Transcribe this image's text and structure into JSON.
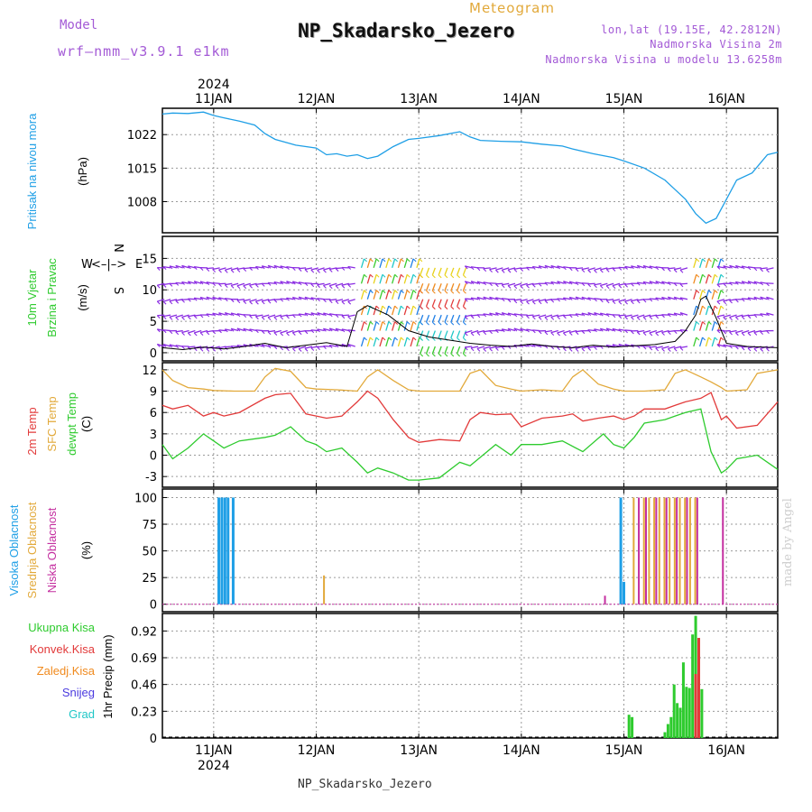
{
  "header": {
    "model_label": "Model",
    "model_name": "wrf–nmm_v3.9.1 e1km",
    "meteogram_label": "Meteogram",
    "title": "NP_Skadarsko_Jezero",
    "lonlat": "lon,lat (19.15E, 42.2812N)",
    "altitude": "Nadmorska Visina 2m",
    "model_altitude": "Nadmorska Visina u modelu 13.6258m"
  },
  "footer": "NP_Skadarsko_Jezero",
  "credit": "made by Angel",
  "colors": {
    "pressure": "#1f9fe6",
    "temp2m": "#e23a3a",
    "sfc_temp": "#e2a93a",
    "dewpoint": "#2ecb2e",
    "wind_barb": "#8a2be2",
    "precip_total": "#2ecb2e",
    "precip_conv": "#e23a3a",
    "cloud_high": "#1f9fe6",
    "cloud_mid": "#e2a93a",
    "cloud_low": "#c42fa0"
  },
  "chart_data": [
    {
      "type": "line",
      "panel": "pressure",
      "ylabel": "Pritisak na nivou mora",
      "unit": "(hPa)",
      "yticks": [
        1008,
        1015,
        1022
      ],
      "ylim": [
        1001.5,
        1027.5
      ],
      "x_days": [
        10.5,
        10.6,
        10.75,
        10.9,
        11.0,
        11.1,
        11.25,
        11.4,
        11.5,
        11.6,
        11.8,
        12.0,
        12.1,
        12.2,
        12.3,
        12.4,
        12.5,
        12.6,
        12.75,
        12.9,
        13.0,
        13.2,
        13.4,
        13.5,
        13.6,
        13.8,
        14.0,
        14.2,
        14.4,
        14.5,
        14.7,
        14.9,
        15.0,
        15.2,
        15.4,
        15.5,
        15.6,
        15.7,
        15.8,
        15.9,
        16.0,
        16.1,
        16.25,
        16.4,
        16.5
      ],
      "values": [
        1026.3,
        1026.5,
        1026.4,
        1026.7,
        1026.0,
        1025.5,
        1024.8,
        1024.0,
        1022.2,
        1021.0,
        1019.8,
        1019.2,
        1017.8,
        1018.0,
        1017.5,
        1017.8,
        1017.0,
        1017.5,
        1019.5,
        1021.0,
        1021.2,
        1021.8,
        1022.6,
        1021.5,
        1020.8,
        1020.6,
        1020.5,
        1020.0,
        1019.6,
        1019.0,
        1018.0,
        1017.2,
        1016.5,
        1015.0,
        1012.5,
        1010.5,
        1008.5,
        1005.5,
        1003.5,
        1004.5,
        1008.5,
        1012.5,
        1014.0,
        1017.8,
        1018.3
      ]
    },
    {
      "type": "line",
      "panel": "wind",
      "ylabel": "10m Vjetar",
      "ylabel2": "Brzina i Pravac",
      "unit": "(m/s)",
      "yticks": [
        0,
        5,
        10,
        15
      ],
      "ylim": [
        -1.3,
        18.5
      ],
      "compass": {
        "n": "N",
        "s": "S",
        "e": "E",
        "w": "W",
        "arrows": "<–|–>"
      },
      "series": [
        {
          "name": "speed",
          "x_days": [
            10.5,
            10.7,
            10.9,
            11.1,
            11.3,
            11.5,
            11.7,
            11.9,
            12.1,
            12.3,
            12.4,
            12.5,
            12.7,
            12.9,
            13.1,
            13.3,
            13.5,
            13.7,
            13.9,
            14.1,
            14.3,
            14.5,
            14.7,
            14.9,
            15.1,
            15.3,
            15.5,
            15.6,
            15.7,
            15.75,
            15.8,
            15.9,
            16.0,
            16.2,
            16.5
          ],
          "values": [
            0.8,
            0.5,
            0.9,
            0.6,
            1.0,
            1.5,
            0.8,
            1.2,
            1.6,
            1.0,
            6.5,
            7.5,
            6.0,
            3.5,
            2.5,
            2.0,
            1.5,
            1.2,
            1.0,
            1.4,
            1.0,
            0.8,
            1.2,
            0.9,
            1.1,
            1.3,
            1.8,
            3.5,
            6.0,
            8.5,
            9.0,
            5.5,
            1.5,
            1.0,
            0.8
          ]
        }
      ]
    },
    {
      "type": "line",
      "panel": "temperature",
      "ylabel": "2m Temp",
      "ylabel2": "SFC Temp",
      "ylabel3": "dewpt Temp",
      "unit": "(C)",
      "yticks": [
        -3,
        0,
        3,
        6,
        9,
        12
      ],
      "ylim": [
        -4.5,
        13
      ],
      "series": [
        {
          "name": "2m Temp",
          "x_days": [
            10.5,
            10.6,
            10.75,
            10.9,
            11.0,
            11.1,
            11.25,
            11.5,
            11.6,
            11.75,
            11.9,
            12.0,
            12.1,
            12.25,
            12.4,
            12.5,
            12.6,
            12.75,
            12.9,
            13.0,
            13.2,
            13.4,
            13.5,
            13.6,
            13.75,
            13.9,
            14.0,
            14.2,
            14.4,
            14.5,
            14.6,
            14.75,
            14.9,
            15.0,
            15.1,
            15.2,
            15.4,
            15.5,
            15.6,
            15.75,
            15.85,
            15.95,
            16.0,
            16.1,
            16.3,
            16.5
          ],
          "values": [
            7.0,
            6.5,
            7.0,
            5.5,
            6.0,
            5.5,
            6.0,
            8.0,
            8.5,
            8.7,
            5.8,
            5.5,
            5.2,
            5.5,
            7.5,
            9.0,
            8.0,
            5.0,
            2.5,
            1.8,
            2.2,
            2.0,
            5.0,
            6.0,
            5.7,
            5.8,
            4.0,
            5.2,
            5.5,
            5.8,
            4.8,
            5.2,
            5.5,
            5.0,
            5.5,
            6.5,
            6.5,
            7.0,
            7.5,
            8.0,
            8.8,
            5.0,
            5.5,
            3.8,
            4.2,
            7.5
          ]
        },
        {
          "name": "SFC Temp",
          "x_days": [
            10.5,
            10.6,
            10.75,
            10.9,
            11.0,
            11.2,
            11.4,
            11.5,
            11.6,
            11.75,
            11.9,
            12.0,
            12.2,
            12.4,
            12.5,
            12.6,
            12.75,
            12.9,
            13.0,
            13.2,
            13.4,
            13.5,
            13.6,
            13.75,
            13.9,
            14.0,
            14.2,
            14.4,
            14.5,
            14.6,
            14.75,
            14.9,
            15.0,
            15.2,
            15.4,
            15.5,
            15.6,
            15.75,
            15.85,
            15.95,
            16.0,
            16.2,
            16.3,
            16.5
          ],
          "values": [
            12.0,
            10.5,
            9.5,
            9.3,
            9.1,
            9.0,
            9.0,
            11.0,
            12.2,
            11.8,
            9.5,
            9.3,
            9.2,
            9.0,
            11.0,
            12.0,
            10.5,
            9.2,
            9.0,
            9.0,
            9.0,
            11.5,
            12.0,
            9.8,
            9.3,
            9.0,
            9.2,
            9.0,
            11.0,
            12.0,
            10.0,
            9.3,
            9.0,
            9.0,
            9.2,
            11.5,
            12.0,
            11.0,
            10.3,
            9.5,
            9.0,
            9.2,
            11.5,
            12.0
          ]
        },
        {
          "name": "dewpt Temp",
          "x_days": [
            10.5,
            10.6,
            10.75,
            10.9,
            11.0,
            11.1,
            11.25,
            11.5,
            11.6,
            11.75,
            11.9,
            12.0,
            12.1,
            12.25,
            12.4,
            12.5,
            12.6,
            12.75,
            12.9,
            13.0,
            13.2,
            13.4,
            13.5,
            13.75,
            13.9,
            14.0,
            14.2,
            14.4,
            14.6,
            14.8,
            14.9,
            15.0,
            15.1,
            15.2,
            15.4,
            15.5,
            15.6,
            15.75,
            15.85,
            15.95,
            16.0,
            16.1,
            16.3,
            16.5
          ],
          "values": [
            1.5,
            -0.5,
            1.0,
            3.0,
            2.0,
            1.0,
            2.0,
            2.5,
            2.8,
            4.0,
            2.0,
            1.5,
            0.5,
            1.0,
            -1.0,
            -2.5,
            -1.8,
            -2.5,
            -3.5,
            -3.5,
            -3.2,
            -1.0,
            -1.5,
            1.5,
            0.0,
            1.5,
            1.5,
            2.0,
            0.5,
            3.0,
            1.5,
            1.0,
            2.5,
            4.5,
            5.0,
            5.5,
            6.0,
            6.5,
            0.5,
            -2.5,
            -2.0,
            -0.5,
            0.0,
            -2.0
          ]
        }
      ]
    },
    {
      "type": "bar",
      "panel": "clouds",
      "ylabel": "Visoka Oblacnost",
      "ylabel2": "Srednja Oblacnost",
      "ylabel3": "Niska Oblacnost",
      "unit": "(%)",
      "yticks": [
        0,
        25,
        50,
        75,
        100
      ],
      "ylim": [
        -7,
        108
      ],
      "series": [
        {
          "name": "Visoka Oblacnost",
          "x_days": [
            11.05,
            11.08,
            11.11,
            11.14,
            11.19,
            14.97,
            15.0
          ],
          "values": [
            100,
            100,
            100,
            100,
            100,
            100,
            21
          ]
        },
        {
          "name": "Srednja Oblacnost",
          "x_days": [
            12.08,
            15.1,
            15.2,
            15.25,
            15.3,
            15.35,
            15.4,
            15.45,
            15.5,
            15.55,
            15.6,
            15.65,
            15.7
          ],
          "values": [
            27,
            100,
            100,
            100,
            100,
            100,
            100,
            100,
            100,
            100,
            100,
            100,
            100
          ]
        },
        {
          "name": "Niska Oblacnost",
          "x_days": [
            14.82,
            15.15,
            15.22,
            15.32,
            15.42,
            15.52,
            15.62,
            15.72,
            15.97
          ],
          "values": [
            8,
            100,
            100,
            100,
            100,
            100,
            100,
            100,
            100
          ]
        }
      ]
    },
    {
      "type": "bar",
      "panel": "precip",
      "ylabel": "1hr Precip (mm)",
      "yticks": [
        0,
        0.23,
        0.46,
        0.69,
        0.92
      ],
      "ylim": [
        0,
        1.07
      ],
      "legend": [
        "Ukupna Kisa",
        "Konvek.Kisa",
        "Zaledj.Kisa",
        "Snijeg",
        "Grad"
      ],
      "series": [
        {
          "name": "Ukupna Kisa",
          "x_days": [
            15.05,
            15.08,
            15.4,
            15.43,
            15.46,
            15.49,
            15.52,
            15.55,
            15.58,
            15.61,
            15.64,
            15.67,
            15.7,
            15.73,
            15.76
          ],
          "values": [
            0.2,
            0.18,
            0.05,
            0.12,
            0.18,
            0.46,
            0.3,
            0.26,
            0.65,
            0.44,
            0.43,
            0.89,
            1.05,
            0.86,
            0.42
          ]
        },
        {
          "name": "Konvek.Kisa",
          "x_days": [
            15.7,
            15.73
          ],
          "values": [
            0.55,
            0.86
          ]
        }
      ]
    }
  ],
  "x_axis": {
    "year": "2024",
    "days": [
      "11JAN",
      "12JAN",
      "13JAN",
      "14JAN",
      "15JAN",
      "16JAN"
    ]
  }
}
